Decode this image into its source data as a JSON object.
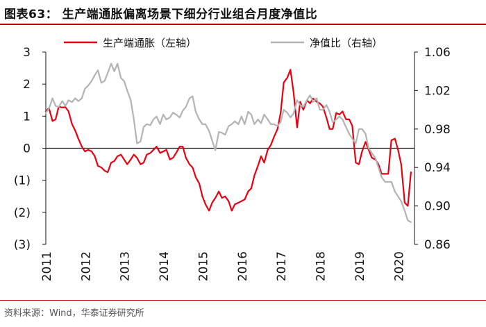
{
  "title": "图表63： 生产端通胀偏离场景下细分行业组合月度净值比",
  "source": "资料来源：Wind，华泰证券研究所",
  "chart_data": {
    "type": "line",
    "series": [
      {
        "name": "生产端通胀（左轴）",
        "axis": "left",
        "color": "#e60012",
        "values": [
          [
            2011.0,
            1.15
          ],
          [
            2011.08,
            1.25
          ],
          [
            2011.17,
            0.85
          ],
          [
            2011.25,
            0.9
          ],
          [
            2011.33,
            1.3
          ],
          [
            2011.42,
            1.27
          ],
          [
            2011.5,
            1.28
          ],
          [
            2011.58,
            1.15
          ],
          [
            2011.67,
            0.75
          ],
          [
            2011.75,
            0.55
          ],
          [
            2011.83,
            0.3
          ],
          [
            2011.92,
            0.05
          ],
          [
            2012.0,
            -0.1
          ],
          [
            2012.08,
            -0.05
          ],
          [
            2012.17,
            -0.1
          ],
          [
            2012.25,
            -0.25
          ],
          [
            2012.33,
            -0.55
          ],
          [
            2012.42,
            -0.6
          ],
          [
            2012.5,
            -0.7
          ],
          [
            2012.58,
            -0.75
          ],
          [
            2012.67,
            -0.45
          ],
          [
            2012.75,
            -0.4
          ],
          [
            2012.83,
            -0.25
          ],
          [
            2012.92,
            -0.2
          ],
          [
            2013.0,
            -0.35
          ],
          [
            2013.08,
            -0.5
          ],
          [
            2013.17,
            -0.35
          ],
          [
            2013.25,
            -0.2
          ],
          [
            2013.33,
            -0.3
          ],
          [
            2013.42,
            -0.5
          ],
          [
            2013.5,
            -0.45
          ],
          [
            2013.58,
            -0.2
          ],
          [
            2013.67,
            -0.15
          ],
          [
            2013.75,
            -0.05
          ],
          [
            2013.83,
            0.05
          ],
          [
            2013.92,
            -0.15
          ],
          [
            2014.0,
            -0.1
          ],
          [
            2014.08,
            -0.05
          ],
          [
            2014.17,
            -0.35
          ],
          [
            2014.25,
            -0.3
          ],
          [
            2014.33,
            -0.15
          ],
          [
            2014.42,
            0.05
          ],
          [
            2014.5,
            0.05
          ],
          [
            2014.58,
            -0.3
          ],
          [
            2014.67,
            -0.5
          ],
          [
            2014.75,
            -0.6
          ],
          [
            2014.83,
            -0.9
          ],
          [
            2014.92,
            -1.1
          ],
          [
            2015.0,
            -1.5
          ],
          [
            2015.08,
            -1.75
          ],
          [
            2015.17,
            -1.95
          ],
          [
            2015.25,
            -1.7
          ],
          [
            2015.33,
            -1.55
          ],
          [
            2015.42,
            -1.35
          ],
          [
            2015.5,
            -1.55
          ],
          [
            2015.58,
            -1.5
          ],
          [
            2015.67,
            -1.65
          ],
          [
            2015.75,
            -1.95
          ],
          [
            2015.83,
            -1.75
          ],
          [
            2015.92,
            -1.7
          ],
          [
            2016.0,
            -1.65
          ],
          [
            2016.08,
            -1.6
          ],
          [
            2016.17,
            -1.35
          ],
          [
            2016.25,
            -1.25
          ],
          [
            2016.33,
            -0.85
          ],
          [
            2016.42,
            -0.55
          ],
          [
            2016.5,
            -0.25
          ],
          [
            2016.58,
            -0.45
          ],
          [
            2016.67,
            -0.05
          ],
          [
            2016.75,
            0.1
          ],
          [
            2016.83,
            0.35
          ],
          [
            2016.92,
            0.6
          ],
          [
            2017.0,
            1.1
          ],
          [
            2017.08,
            2.05
          ],
          [
            2017.17,
            2.2
          ],
          [
            2017.25,
            2.45
          ],
          [
            2017.33,
            1.75
          ],
          [
            2017.42,
            0.65
          ],
          [
            2017.5,
            1.45
          ],
          [
            2017.58,
            1.2
          ],
          [
            2017.67,
            1.5
          ],
          [
            2017.75,
            1.4
          ],
          [
            2017.83,
            1.55
          ],
          [
            2017.92,
            1.45
          ],
          [
            2018.0,
            1.4
          ],
          [
            2018.08,
            1.3
          ],
          [
            2018.17,
            0.95
          ],
          [
            2018.25,
            0.6
          ],
          [
            2018.33,
            0.6
          ],
          [
            2018.42,
            1.1
          ],
          [
            2018.5,
            1.05
          ],
          [
            2018.58,
            1.15
          ],
          [
            2018.67,
            0.9
          ],
          [
            2018.75,
            0.9
          ],
          [
            2018.83,
            0.7
          ],
          [
            2018.92,
            -0.45
          ],
          [
            2019.0,
            -0.5
          ],
          [
            2019.08,
            -0.1
          ],
          [
            2019.17,
            0.2
          ],
          [
            2019.25,
            -0.05
          ],
          [
            2019.33,
            -0.3
          ],
          [
            2019.42,
            -0.35
          ],
          [
            2019.5,
            -0.5
          ],
          [
            2019.58,
            -0.8
          ],
          [
            2019.67,
            -0.8
          ],
          [
            2019.75,
            -0.8
          ],
          [
            2019.83,
            0.25
          ],
          [
            2019.92,
            0.3
          ],
          [
            2020.0,
            -0.05
          ],
          [
            2020.08,
            -0.5
          ],
          [
            2020.17,
            -1.7
          ],
          [
            2020.25,
            -1.8
          ],
          [
            2020.33,
            -0.75
          ]
        ]
      },
      {
        "name": "净值比（右轴）",
        "axis": "right",
        "color": "#b3b3b3",
        "values": [
          [
            2011.0,
            0.997
          ],
          [
            2011.08,
            1.001
          ],
          [
            2011.17,
            1.012
          ],
          [
            2011.25,
            1.004
          ],
          [
            2011.33,
            1.003
          ],
          [
            2011.42,
            1.009
          ],
          [
            2011.5,
            1.004
          ],
          [
            2011.58,
            1.01
          ],
          [
            2011.67,
            1.008
          ],
          [
            2011.75,
            1.012
          ],
          [
            2011.83,
            1.009
          ],
          [
            2011.92,
            1.012
          ],
          [
            2012.0,
            1.022
          ],
          [
            2012.08,
            1.025
          ],
          [
            2012.17,
            1.03
          ],
          [
            2012.25,
            1.036
          ],
          [
            2012.33,
            1.041
          ],
          [
            2012.42,
            1.028
          ],
          [
            2012.5,
            1.03
          ],
          [
            2012.58,
            1.038
          ],
          [
            2012.67,
            1.048
          ],
          [
            2012.75,
            1.04
          ],
          [
            2012.83,
            1.048
          ],
          [
            2012.92,
            1.033
          ],
          [
            2013.0,
            1.03
          ],
          [
            2013.08,
            1.02
          ],
          [
            2013.17,
            1.01
          ],
          [
            2013.25,
            0.99
          ],
          [
            2013.33,
            0.965
          ],
          [
            2013.42,
            0.967
          ],
          [
            2013.5,
            0.982
          ],
          [
            2013.58,
            0.985
          ],
          [
            2013.67,
            0.984
          ],
          [
            2013.75,
            0.99
          ],
          [
            2013.83,
            0.993
          ],
          [
            2013.92,
            0.985
          ],
          [
            2014.0,
            0.995
          ],
          [
            2014.08,
            0.99
          ],
          [
            2014.17,
            0.992
          ],
          [
            2014.25,
            0.997
          ],
          [
            2014.33,
            0.995
          ],
          [
            2014.42,
            0.992
          ],
          [
            2014.5,
            0.999
          ],
          [
            2014.58,
            1.003
          ],
          [
            2014.67,
            1.012
          ],
          [
            2014.75,
            1.014
          ],
          [
            2014.83,
            0.998
          ],
          [
            2014.92,
            0.99
          ],
          [
            2015.0,
            0.985
          ],
          [
            2015.08,
            0.985
          ],
          [
            2015.17,
            0.978
          ],
          [
            2015.25,
            0.968
          ],
          [
            2015.33,
            0.958
          ],
          [
            2015.42,
            0.977
          ],
          [
            2015.5,
            0.976
          ],
          [
            2015.58,
            0.974
          ],
          [
            2015.67,
            0.983
          ],
          [
            2015.75,
            0.985
          ],
          [
            2015.83,
            0.988
          ],
          [
            2015.92,
            0.985
          ],
          [
            2016.0,
            0.993
          ],
          [
            2016.08,
            0.985
          ],
          [
            2016.17,
            0.998
          ],
          [
            2016.25,
            0.995
          ],
          [
            2016.33,
            0.985
          ],
          [
            2016.42,
            0.99
          ],
          [
            2016.5,
            0.986
          ],
          [
            2016.58,
            0.995
          ],
          [
            2016.67,
            0.99
          ],
          [
            2016.75,
            0.985
          ],
          [
            2016.83,
            0.985
          ],
          [
            2016.92,
            0.983
          ],
          [
            2017.0,
            0.987
          ],
          [
            2017.08,
            1.0
          ],
          [
            2017.17,
            0.997
          ],
          [
            2017.25,
            0.992
          ],
          [
            2017.33,
            0.996
          ],
          [
            2017.42,
            1.01
          ],
          [
            2017.5,
            1.005
          ],
          [
            2017.58,
            1.003
          ],
          [
            2017.67,
            1.01
          ],
          [
            2017.75,
            1.015
          ],
          [
            2017.83,
            1.008
          ],
          [
            2017.92,
            1.012
          ],
          [
            2018.0,
            1.0
          ],
          [
            2018.08,
            1.0
          ],
          [
            2018.17,
            1.005
          ],
          [
            2018.25,
            0.998
          ],
          [
            2018.33,
            0.987
          ],
          [
            2018.42,
            0.99
          ],
          [
            2018.5,
            0.993
          ],
          [
            2018.58,
            0.99
          ],
          [
            2018.67,
            0.982
          ],
          [
            2018.75,
            0.975
          ],
          [
            2018.83,
            0.97
          ],
          [
            2018.92,
            0.965
          ],
          [
            2019.0,
            0.98
          ],
          [
            2019.08,
            0.98
          ],
          [
            2019.17,
            0.975
          ],
          [
            2019.25,
            0.96
          ],
          [
            2019.33,
            0.955
          ],
          [
            2019.42,
            0.95
          ],
          [
            2019.5,
            0.94
          ],
          [
            2019.58,
            0.93
          ],
          [
            2019.67,
            0.925
          ],
          [
            2019.75,
            0.925
          ],
          [
            2019.83,
            0.925
          ],
          [
            2019.92,
            0.915
          ],
          [
            2020.0,
            0.91
          ],
          [
            2020.08,
            0.905
          ],
          [
            2020.17,
            0.895
          ],
          [
            2020.25,
            0.885
          ],
          [
            2020.33,
            0.883
          ]
        ]
      }
    ],
    "x_ticks": [
      "2011",
      "2012",
      "2013",
      "2014",
      "2015",
      "2016",
      "2017",
      "2018",
      "2019",
      "2020"
    ],
    "x_tick_values": [
      2011,
      2012,
      2013,
      2014,
      2015,
      2016,
      2017,
      2018,
      2019,
      2020
    ],
    "xlim": [
      2011.0,
      2020.42
    ],
    "y_left": {
      "lim": [
        -3,
        3
      ],
      "ticks": [
        3,
        2,
        1,
        0,
        -1,
        -2,
        -3
      ],
      "tick_labels": [
        "3",
        "2",
        "1",
        "0",
        "(1)",
        "(2)",
        "(3)"
      ]
    },
    "y_right": {
      "lim": [
        0.86,
        1.06
      ],
      "ticks": [
        1.06,
        1.02,
        0.98,
        0.94,
        0.9,
        0.86
      ],
      "tick_labels": [
        "1.06",
        "1.02",
        "0.98",
        "0.94",
        "0.90",
        "0.86"
      ]
    },
    "grid": false,
    "legend": "top"
  }
}
